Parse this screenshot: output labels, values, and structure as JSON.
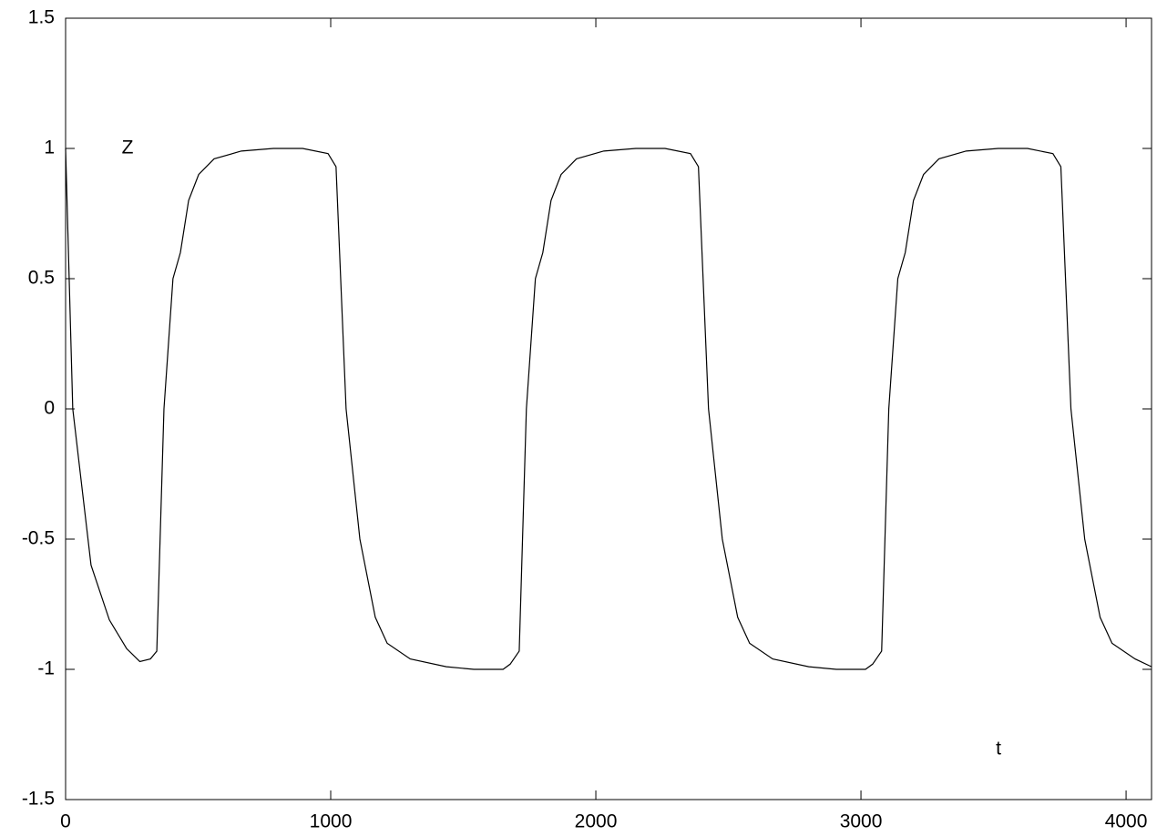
{
  "chart_data": {
    "type": "line",
    "xlabel": "t",
    "ylabel": "Z",
    "x": [
      0,
      27,
      96,
      165,
      230,
      280,
      320,
      344,
      371,
      405,
      433,
      464,
      502,
      560,
      663,
      784,
      894,
      990,
      1020,
      1058,
      1110,
      1168,
      1213,
      1300,
      1436,
      1540,
      1650,
      1677,
      1711,
      1738,
      1772,
      1800,
      1831,
      1869,
      1927,
      2030,
      2151,
      2261,
      2357,
      2387,
      2425,
      2477,
      2535,
      2580,
      2667,
      2803,
      2907,
      3017,
      3044,
      3078,
      3105,
      3139,
      3167,
      3198,
      3236,
      3294,
      3397,
      3518,
      3628,
      3724,
      3754,
      3792,
      3844,
      3902,
      3947,
      4034,
      4096
    ],
    "values": [
      1,
      0,
      -0.6,
      -0.81,
      -0.92,
      -0.97,
      -0.96,
      -0.93,
      0,
      0.5,
      0.6,
      0.8,
      0.9,
      0.96,
      0.99,
      1,
      1,
      0.98,
      0.93,
      0,
      -0.5,
      -0.8,
      -0.9,
      -0.96,
      -0.99,
      -1,
      -1,
      -0.98,
      -0.93,
      0,
      0.5,
      0.6,
      0.8,
      0.9,
      0.96,
      0.99,
      1,
      1,
      0.98,
      0.93,
      0,
      -0.5,
      -0.8,
      -0.9,
      -0.96,
      -0.99,
      -1,
      -1,
      -0.98,
      -0.93,
      0,
      0.5,
      0.6,
      0.8,
      0.9,
      0.96,
      0.99,
      1,
      1,
      0.98,
      0.93,
      0,
      -0.5,
      -0.8,
      -0.9,
      -0.96,
      -0.99
    ],
    "color": "#000000",
    "xlim": [
      0,
      4096
    ],
    "xticks": [
      0,
      1000,
      2000,
      3000,
      4000
    ],
    "ylim": [
      -1.5,
      1.5
    ],
    "yticks": [
      -1.5,
      -1,
      -0.5,
      0,
      0.5,
      1,
      1.5
    ]
  }
}
